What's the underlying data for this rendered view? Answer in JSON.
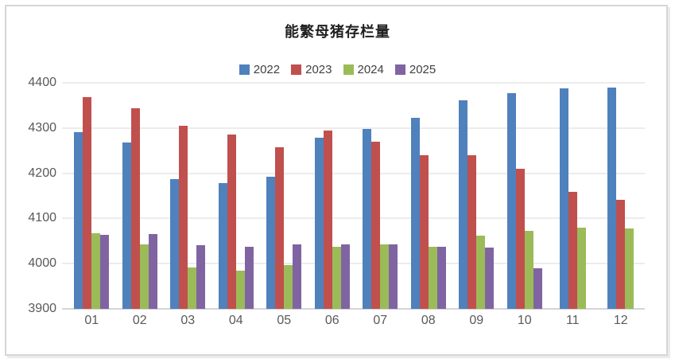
{
  "chart_data": {
    "type": "bar",
    "title": "能繁母猪存栏量",
    "categories": [
      "01",
      "02",
      "03",
      "04",
      "05",
      "06",
      "07",
      "08",
      "09",
      "10",
      "11",
      "12"
    ],
    "series": [
      {
        "name": "2022",
        "color": "#4F81BD",
        "values": [
          4290,
          4268,
          4187,
          4178,
          4193,
          4278,
          4298,
          4323,
          4362,
          4378,
          4387,
          4390
        ]
      },
      {
        "name": "2023",
        "color": "#C0504D",
        "values": [
          4368,
          4343,
          4305,
          4285,
          4258,
          4295,
          4270,
          4240,
          4240,
          4210,
          4158,
          4142
        ]
      },
      {
        "name": "2024",
        "color": "#9BBB59",
        "values": [
          4067,
          4042,
          3991,
          3985,
          3996,
          4038,
          4042,
          4037,
          4062,
          4072,
          4080,
          4078
        ]
      },
      {
        "name": "2025",
        "color": "#8064A2",
        "values": [
          4063,
          4065,
          4040,
          4038,
          4042,
          4042,
          4042,
          4037,
          4035,
          3989,
          null,
          null
        ]
      }
    ],
    "xlabel": "",
    "ylabel": "",
    "ylim": [
      3900,
      4400
    ],
    "yticks": [
      3900,
      4000,
      4100,
      4200,
      4300,
      4400
    ],
    "grid": true,
    "legend_position": "top"
  },
  "style_colors": {
    "axis_text": "#595959",
    "legend_text": "#404040",
    "gridline": "#ECECEC",
    "baseline": "#D5D5D5",
    "frame_border": "#D6D6D6",
    "title_text": "#1F1F1F"
  }
}
